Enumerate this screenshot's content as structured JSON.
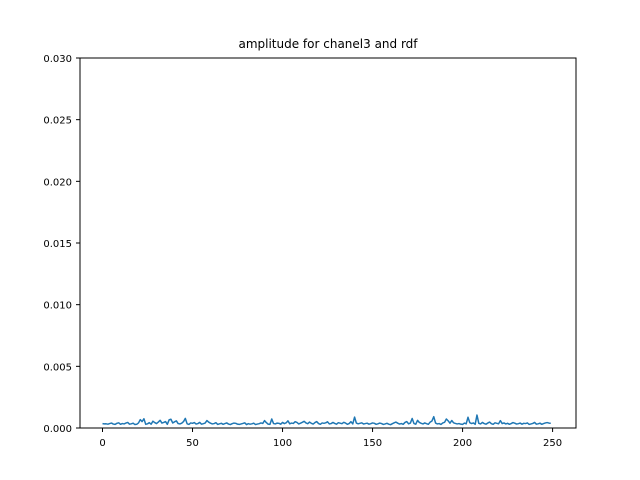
{
  "chart_data": {
    "type": "line",
    "title": "amplitude for chanel3 and rdf",
    "xlabel": "",
    "ylabel": "",
    "xlim": [
      -12.5,
      263
    ],
    "ylim": [
      0,
      0.03
    ],
    "x_ticks": [
      0,
      50,
      100,
      150,
      200,
      250
    ],
    "x_tick_labels": [
      "0",
      "50",
      "100",
      "150",
      "200",
      "250"
    ],
    "y_ticks": [
      0,
      0.005,
      0.01,
      0.015,
      0.02,
      0.025,
      0.03
    ],
    "y_tick_labels": [
      "0.000",
      "0.005",
      "0.010",
      "0.015",
      "0.020",
      "0.025",
      "0.030"
    ],
    "grid": false,
    "line_color": "#1f77b4",
    "series": [
      {
        "x_start": 0,
        "x_step": 1,
        "values": [
          0.00035,
          0.00033,
          0.00034,
          0.00031,
          0.00036,
          0.0004,
          0.00032,
          0.00029,
          0.00038,
          0.00042,
          0.0003,
          0.00036,
          0.00033,
          0.0004,
          0.00045,
          0.00031,
          0.00034,
          0.00039,
          0.00028,
          0.0003,
          0.00041,
          0.00068,
          0.00052,
          0.00075,
          0.0003,
          0.00034,
          0.00043,
          0.00031,
          0.00055,
          0.00044,
          0.00036,
          0.00048,
          0.00062,
          0.0004,
          0.00045,
          0.00052,
          0.0003,
          0.00066,
          0.00071,
          0.00041,
          0.0005,
          0.00058,
          0.00036,
          0.00033,
          0.00039,
          0.00052,
          0.00078,
          0.00034,
          0.00029,
          0.00041,
          0.00038,
          0.00044,
          0.00032,
          0.00036,
          0.00045,
          0.00031,
          0.00035,
          0.0004,
          0.0006,
          0.00047,
          0.00039,
          0.00033,
          0.00036,
          0.00043,
          0.00029,
          0.00034,
          0.00038,
          0.0003,
          0.00036,
          0.00041,
          0.00032,
          0.00028,
          0.00035,
          0.0004,
          0.00038,
          0.00031,
          0.00029,
          0.00033,
          0.00037,
          0.00042,
          0.00028,
          0.00035,
          0.00031,
          0.00034,
          0.00039,
          0.00028,
          0.00032,
          0.00035,
          0.00041,
          0.00037,
          0.0006,
          0.00044,
          0.00031,
          0.00029,
          0.00073,
          0.00036,
          0.00033,
          0.0004,
          0.00038,
          0.00031,
          0.00045,
          0.00036,
          0.00042,
          0.00058,
          0.00034,
          0.0004,
          0.00037,
          0.00051,
          0.00045,
          0.00033,
          0.00039,
          0.00046,
          0.00054,
          0.00041,
          0.00035,
          0.00048,
          0.00038,
          0.00032,
          0.00044,
          0.00052,
          0.00036,
          0.0003,
          0.00041,
          0.00038,
          0.00042,
          0.0005,
          0.00033,
          0.00036,
          0.00045,
          0.00037,
          0.00031,
          0.00043,
          0.00039,
          0.00035,
          0.00046,
          0.0004,
          0.0003,
          0.00036,
          0.00051,
          0.00033,
          0.00088,
          0.0004,
          0.00034,
          0.00038,
          0.00042,
          0.00032,
          0.00036,
          0.00039,
          0.00031,
          0.00035,
          0.00041,
          0.00038,
          0.0003,
          0.00034,
          0.0004,
          0.00036,
          0.00029,
          0.00033,
          0.00038,
          0.00031,
          0.00027,
          0.00035,
          0.00042,
          0.00048,
          0.00039,
          0.00032,
          0.00036,
          0.0003,
          0.00045,
          0.00052,
          0.00034,
          0.0004,
          0.00077,
          0.00036,
          0.00031,
          0.00062,
          0.00045,
          0.00038,
          0.00033,
          0.00041,
          0.00035,
          0.0003,
          0.00048,
          0.00057,
          0.00092,
          0.0004,
          0.00033,
          0.00036,
          0.00029,
          0.00041,
          0.00046,
          0.00073,
          0.00058,
          0.00039,
          0.00061,
          0.00042,
          0.00037,
          0.00033,
          0.00036,
          0.00031,
          0.00029,
          0.0004,
          0.00034,
          0.00087,
          0.00043,
          0.00036,
          0.00041,
          0.0003,
          0.00105,
          0.00038,
          0.00033,
          0.00045,
          0.00036,
          0.00031,
          0.0004,
          0.00048,
          0.00035,
          0.0003,
          0.00042,
          0.00038,
          0.00034,
          0.0006,
          0.00036,
          0.00041,
          0.00033,
          0.00038,
          0.0003,
          0.00036,
          0.00044,
          0.00039,
          0.00032,
          0.00035,
          0.0004,
          0.00031,
          0.00038,
          0.00036,
          0.00041,
          0.00029,
          0.00033,
          0.00037,
          0.00045,
          0.00031,
          0.00034,
          0.00039,
          0.0003,
          0.00036,
          0.00041,
          0.00044,
          0.0004,
          0.00038
        ]
      }
    ]
  }
}
